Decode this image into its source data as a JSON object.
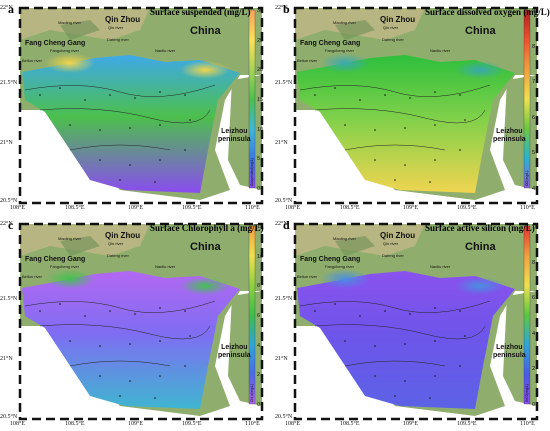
{
  "panels": [
    {
      "id": "a",
      "tag": "a",
      "title": "Surface suspended (mg/L)",
      "colorbar": {
        "ticks": [
          "30",
          "25",
          "20",
          "15",
          "10",
          "5",
          "0"
        ],
        "stops": [
          "#f4a05a",
          "#fde15a",
          "#a8d35a",
          "#4cbf4c",
          "#3fb8d6",
          "#3a7ae8",
          "#8a4cf0"
        ],
        "label": "Suspended(mg/L)"
      },
      "field_colors": [
        "#3fa9e8",
        "#4cbf4c",
        "#8a4cf0",
        "#f1d54a"
      ]
    },
    {
      "id": "b",
      "tag": "b",
      "title": "Surface dissolved oxygen (mg/L)",
      "colorbar": {
        "ticks": [
          "9",
          "8",
          "7",
          "6",
          "5",
          "4"
        ],
        "stops": [
          "#b02020",
          "#f05030",
          "#f0a040",
          "#f0e050",
          "#6cc840",
          "#2ab2d0",
          "#8a5ce0"
        ],
        "label": "DO(mg/L)"
      },
      "field_colors": [
        "#2dbf3c",
        "#7fd04a",
        "#f0d550",
        "#3aa9b0"
      ]
    },
    {
      "id": "c",
      "tag": "c",
      "title": "Surface Chlorophyll a (mg/L)",
      "colorbar": {
        "ticks": [
          "12",
          "10",
          "8",
          "6",
          "4",
          "2",
          "0"
        ],
        "stops": [
          "#f0a040",
          "#f0e050",
          "#8fd040",
          "#3dbc4a",
          "#2fa6d8",
          "#4a6ae8",
          "#b060f0"
        ],
        "label": "Chl a(mg/L)"
      },
      "field_colors": [
        "#b368f2",
        "#7f6df2",
        "#3fb5d0",
        "#44c050"
      ]
    },
    {
      "id": "d",
      "tag": "d",
      "title": "Surface active silicon (mg/L)",
      "colorbar": {
        "ticks": [
          "10",
          "8",
          "6",
          "4",
          "2",
          "0"
        ],
        "stops": [
          "#e83030",
          "#f0a040",
          "#f0e050",
          "#5cc840",
          "#2fa6d8",
          "#4a5ae8",
          "#8a4cf0"
        ],
        "label": "SiO3(mg/L)"
      },
      "field_colors": [
        "#8a52ee",
        "#6e55ea",
        "#5c62e6",
        "#4a8ee0"
      ]
    }
  ],
  "labels": {
    "china": "China",
    "qinzhou": "Qin Zhou",
    "fangchenggang": "Fang Cheng Gang",
    "peninsula": "Leizhou\npeninsula",
    "rivers": [
      "Maoling river",
      "Qin river",
      "Fangcheng river",
      "Dafeng river",
      "Beilun river",
      "Nanliu river"
    ]
  },
  "axes": {
    "lat_ticks": [
      "22°N",
      "21.5°N",
      "21°N",
      "20.5°N"
    ],
    "lon_ticks": [
      "108°E",
      "108.5°E",
      "109°E",
      "109.5°E",
      "110°E"
    ]
  },
  "colors": {
    "land": "#8fae6d",
    "land_dark": "#6f8f58",
    "highland": "#c7b88a",
    "sea": "#ffffff",
    "frame": "#111111"
  }
}
